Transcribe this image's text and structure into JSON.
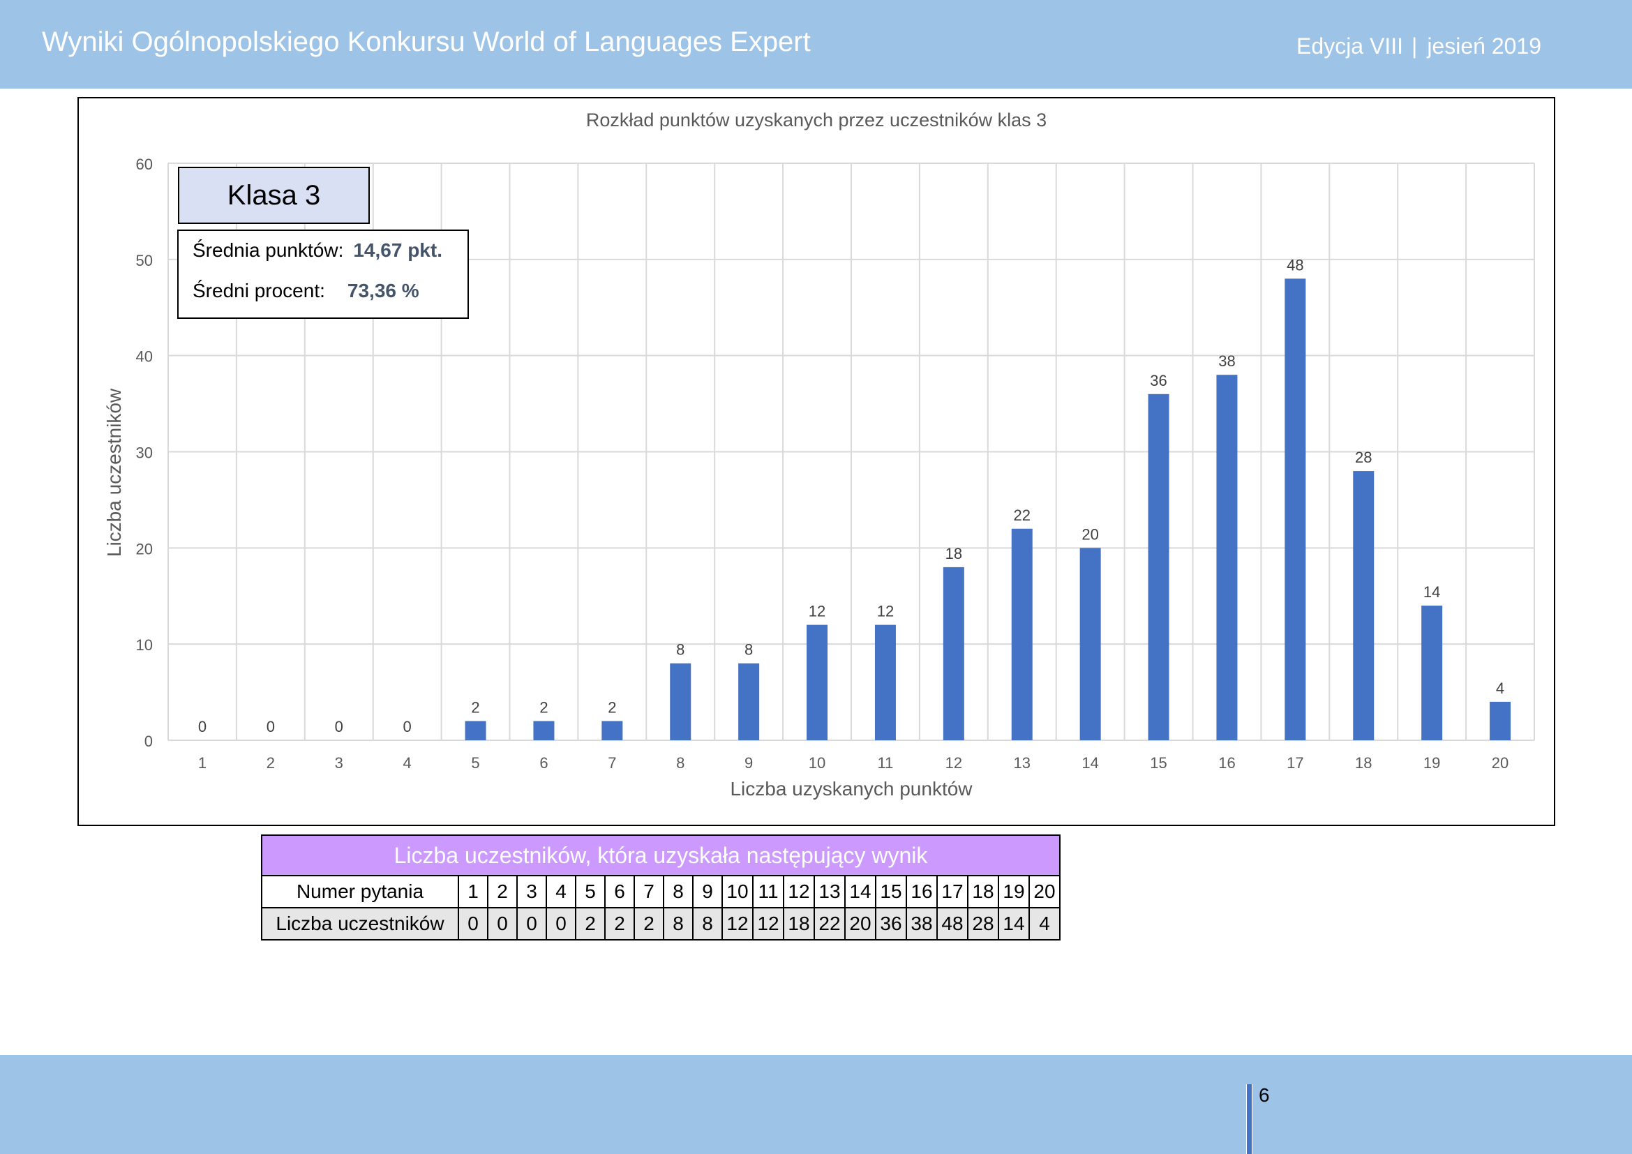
{
  "header": {
    "title": "Wyniki Ogólnopolskiego Konkursu World of Languages Expert",
    "edition": "Edycja VIII",
    "separator": "|",
    "season": "jesień 2019"
  },
  "legend_box": {
    "class_label": "Klasa 3",
    "avg_points_label": "Średnia punktów:",
    "avg_points_value": "14,67 pkt.",
    "avg_percent_label": "Średni procent:",
    "avg_percent_value": "73,36 %"
  },
  "chart_data": {
    "type": "bar",
    "title": "Rozkład punktów uzyskanych przez uczestników klas 3",
    "xlabel": "Liczba uzyskanych punktów",
    "ylabel": "Liczba uczestników",
    "ylim": [
      0,
      60
    ],
    "yticks": [
      0,
      10,
      20,
      30,
      40,
      50,
      60
    ],
    "grid": true,
    "bar_color": "#4472c4",
    "categories": [
      "1",
      "2",
      "3",
      "4",
      "5",
      "6",
      "7",
      "8",
      "9",
      "10",
      "11",
      "12",
      "13",
      "14",
      "15",
      "16",
      "17",
      "18",
      "19",
      "20"
    ],
    "values": [
      0,
      0,
      0,
      0,
      2,
      2,
      2,
      8,
      8,
      12,
      12,
      18,
      22,
      20,
      36,
      38,
      48,
      28,
      14,
      4
    ]
  },
  "table": {
    "banner": "Liczba uczestników, która uzyskała następujący wynik",
    "row1_label": "Numer pytania",
    "row2_label": "Liczba uczestników",
    "numbers": [
      "1",
      "2",
      "3",
      "4",
      "5",
      "6",
      "7",
      "8",
      "9",
      "10",
      "11",
      "12",
      "13",
      "14",
      "15",
      "16",
      "17",
      "18",
      "19",
      "20"
    ],
    "counts": [
      "0",
      "0",
      "0",
      "0",
      "2",
      "2",
      "2",
      "8",
      "8",
      "12",
      "12",
      "18",
      "22",
      "20",
      "36",
      "38",
      "48",
      "28",
      "14",
      "4"
    ]
  },
  "footer": {
    "page_number": "6"
  }
}
